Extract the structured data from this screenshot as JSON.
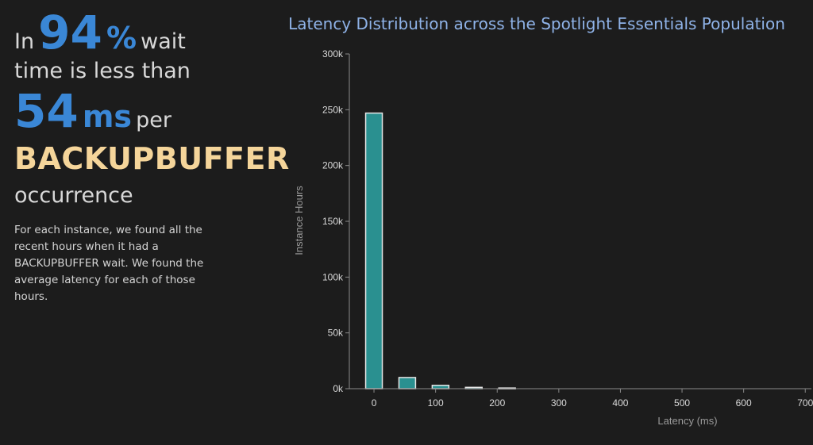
{
  "headline": {
    "in": "In",
    "pct_value": "94",
    "pct_symbol": "%",
    "wait": "wait",
    "line2": "time is less than",
    "latency_value": "54",
    "latency_unit": "ms",
    "per": "per",
    "event": "BACKUPBUFFER",
    "occurrence": "occurrence"
  },
  "description": "For each instance, we found all the recent hours when it had a BACKUPBUFFER wait. We found the average latency for each of those hours.",
  "colors": {
    "bar": "#2a9090",
    "bar_outline": "#e6e6e6",
    "accent": "#3a87d6",
    "highlight": "#f5d59a"
  },
  "chart_data": {
    "type": "bar",
    "title": "Latency Distribution across the Spotlight Essentials Population",
    "xlabel": "Latency (ms)",
    "ylabel": "Instance Hours",
    "xlim": [
      -40,
      710
    ],
    "ylim": [
      0,
      300000
    ],
    "x_ticks": [
      0,
      100,
      200,
      300,
      400,
      500,
      600,
      700
    ],
    "x_tick_labels": [
      "0",
      "100",
      "200",
      "300",
      "400",
      "500",
      "600",
      "700"
    ],
    "y_ticks": [
      0,
      50000,
      100000,
      150000,
      200000,
      250000,
      300000
    ],
    "y_tick_labels": [
      "0k",
      "50k",
      "100k",
      "150k",
      "200k",
      "250k",
      "300k"
    ],
    "bin_width": 27,
    "bins": [
      {
        "x": 0,
        "value": 247000
      },
      {
        "x": 54,
        "value": 10000
      },
      {
        "x": 108,
        "value": 3000
      },
      {
        "x": 162,
        "value": 1200
      },
      {
        "x": 216,
        "value": 600
      }
    ]
  }
}
